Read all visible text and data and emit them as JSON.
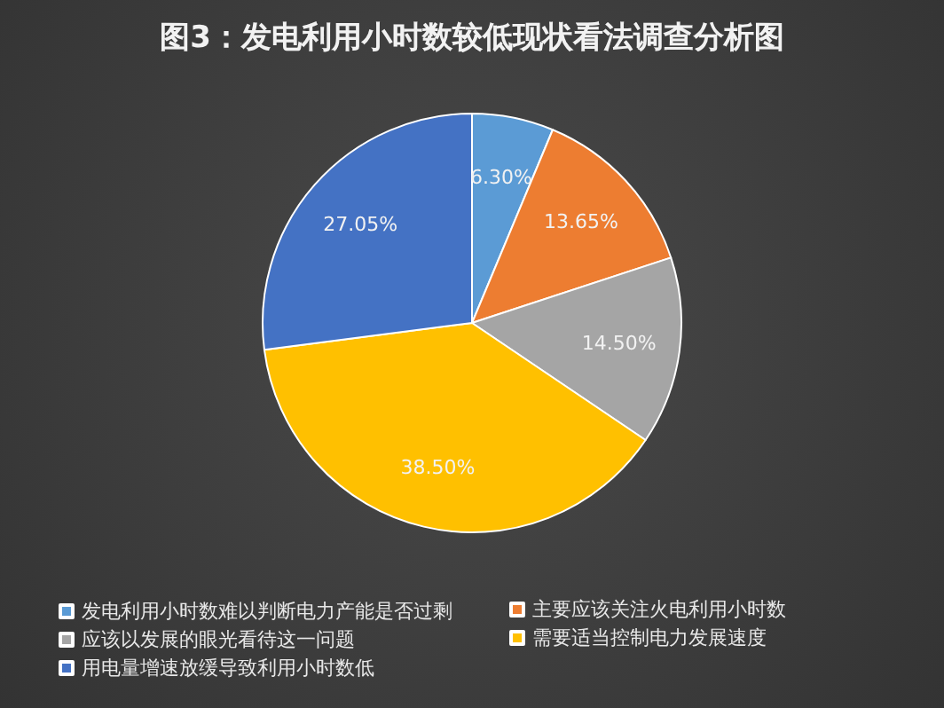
{
  "chart_data": {
    "type": "pie",
    "title": "图3：发电利用小时数较低现状看法调查分析图",
    "categories": [
      "发电利用小时数难以判断电力产能是否过剩",
      "主要应该关注火电利用小时数",
      "应该以发展的眼光看待这一问题",
      "需要适当控制电力发展速度",
      "用电量增速放缓导致利用小时数低"
    ],
    "values": [
      6.3,
      13.65,
      14.5,
      38.5,
      27.05
    ],
    "value_labels": [
      "6.30%",
      "13.65%",
      "14.50%",
      "38.50%",
      "27.05%"
    ],
    "colors": [
      "#5b9bd5",
      "#ed7d31",
      "#a5a5a5",
      "#ffc000",
      "#4472c4"
    ],
    "legend": "bottom"
  }
}
